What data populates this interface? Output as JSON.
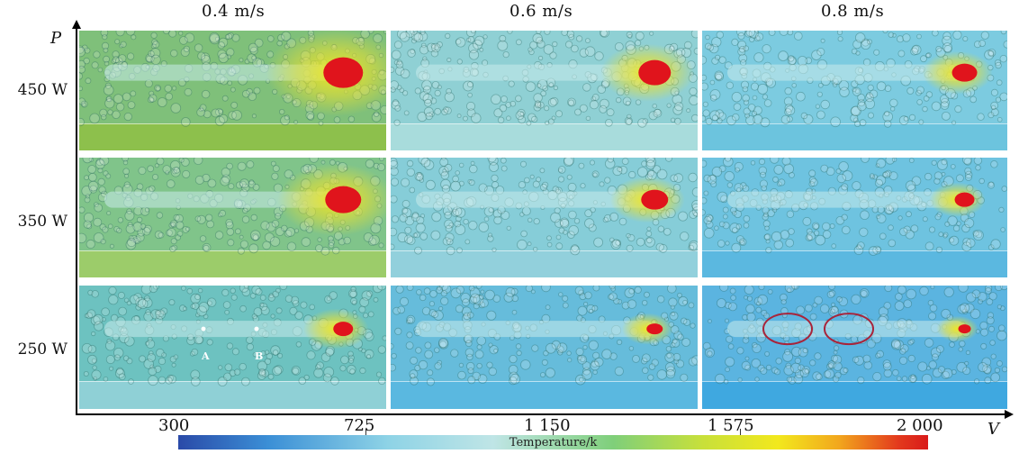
{
  "columns": [
    {
      "label": "0.4 m/s"
    },
    {
      "label": "0.6 m/s"
    },
    {
      "label": "0.8 m/s"
    }
  ],
  "rows": [
    {
      "label": "450 W"
    },
    {
      "label": "350 W"
    },
    {
      "label": "250 W"
    }
  ],
  "axis": {
    "y_letter": "P",
    "x_letter": "V"
  },
  "colorbar": {
    "title": "Temperature/k",
    "ticks": [
      "300",
      "725",
      "1 150",
      "1 575",
      "2 000"
    ],
    "colors": [
      "#2a4aa8",
      "#3b8fd6",
      "#8ed3e6",
      "#7fcf7a",
      "#f2e81d",
      "#d91a1a"
    ]
  },
  "markers": {
    "point_a": "A",
    "point_b": "B"
  },
  "panels": [
    {
      "name": "p-450-04",
      "substrate": "#8dc04c",
      "powder": "#7fc07a"
    },
    {
      "name": "p-450-06",
      "substrate": "#a8dcdc",
      "powder": "#8fd0d4"
    },
    {
      "name": "p-450-08",
      "substrate": "#6cc4de",
      "powder": "#7ccbe0"
    },
    {
      "name": "p-350-04",
      "substrate": "#9ccc6a",
      "powder": "#80c48a"
    },
    {
      "name": "p-350-06",
      "substrate": "#92d0dc",
      "powder": "#86cdd8"
    },
    {
      "name": "p-350-08",
      "substrate": "#5bb8e0",
      "powder": "#6ec3e0"
    },
    {
      "name": "p-250-04",
      "substrate": "#8fd0d6",
      "powder": "#6dc2c0"
    },
    {
      "name": "p-250-06",
      "substrate": "#5ab8e0",
      "powder": "#66bcdb"
    },
    {
      "name": "p-250-08",
      "substrate": "#3fa8e0",
      "powder": "#5bb4e0"
    }
  ]
}
